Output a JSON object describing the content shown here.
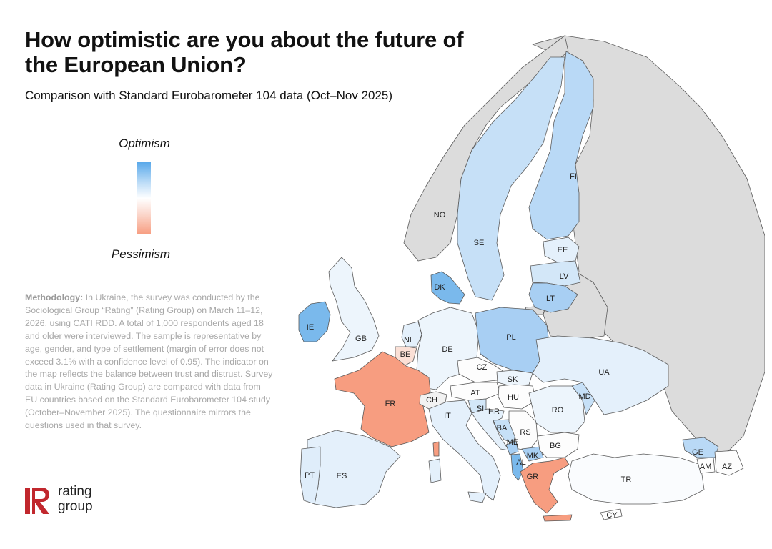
{
  "title": "How optimistic are you about the future of the European Union?",
  "subtitle": "Comparison with Standard Eurobarometer 104 data (Oct–Nov 2025)",
  "legend": {
    "top_label": "Optimism",
    "bottom_label": "Pessimism",
    "colors": {
      "optimism": "#5aa9ea",
      "neutral": "#ffffff",
      "pessimism": "#f79d80",
      "no_data": "#dcdcdc",
      "border": "#5a5a5a"
    }
  },
  "methodology": {
    "label": "Methodology:",
    "text": "In Ukraine, the survey was conducted by the Sociological Group “Rating” (Rating Group) on March 11–12, 2026, using CATI RDD. A total of 1,000 respondents aged 18 and older were interviewed. The sample is representative by age, gender, and type of settlement (margin of error does not exceed 3.1% with a confidence level of 0.95). The indicator on the map reflects the balance between trust and distrust. Survey data in Ukraine (Rating Group) are compared with data from EU countries based on the Standard Eurobarometer 104 study (October–November 2025). The questionnaire mirrors the questions used in that survey."
  },
  "logo": {
    "line1": "rating",
    "line2": "group",
    "brand_color": "#c1272d"
  },
  "map": {
    "countries": [
      {
        "code": "NO",
        "fill": "#dcdcdc"
      },
      {
        "code": "SE",
        "fill": "#c6e0f7"
      },
      {
        "code": "FI",
        "fill": "#b9d9f6"
      },
      {
        "code": "EE",
        "fill": "#e4f0fb"
      },
      {
        "code": "LV",
        "fill": "#d3e7f8"
      },
      {
        "code": "LT",
        "fill": "#a8cff3"
      },
      {
        "code": "DK",
        "fill": "#7ab9ec"
      },
      {
        "code": "IE",
        "fill": "#7ab9ec"
      },
      {
        "code": "GB",
        "fill": "#edf5fc"
      },
      {
        "code": "NL",
        "fill": "#e4f0fb"
      },
      {
        "code": "BE",
        "fill": "#fbe0d6"
      },
      {
        "code": "DE",
        "fill": "#edf5fc"
      },
      {
        "code": "PL",
        "fill": "#a8cff3"
      },
      {
        "code": "CZ",
        "fill": "#fdfdfd"
      },
      {
        "code": "SK",
        "fill": "#edf5fc"
      },
      {
        "code": "AT",
        "fill": "#fdfdfd"
      },
      {
        "code": "HU",
        "fill": "#fdfdfd"
      },
      {
        "code": "FR",
        "fill": "#f79d80"
      },
      {
        "code": "CH",
        "fill": "#f2f2f2"
      },
      {
        "code": "IT",
        "fill": "#e4f0fb"
      },
      {
        "code": "SI",
        "fill": "#d3e7f8"
      },
      {
        "code": "HR",
        "fill": "#e4f0fb"
      },
      {
        "code": "BA",
        "fill": "#c6e0f7"
      },
      {
        "code": "RS",
        "fill": "#fdfdfd"
      },
      {
        "code": "ME",
        "fill": "#a8cff3"
      },
      {
        "code": "MK",
        "fill": "#a8cff3"
      },
      {
        "code": "AL",
        "fill": "#7ab9ec"
      },
      {
        "code": "GR",
        "fill": "#f79d80"
      },
      {
        "code": "BG",
        "fill": "#fdfdfd"
      },
      {
        "code": "RO",
        "fill": "#edf5fc"
      },
      {
        "code": "MD",
        "fill": "#c6e0f7"
      },
      {
        "code": "UA",
        "fill": "#e4f0fb"
      },
      {
        "code": "TR",
        "fill": "#fafcfe"
      },
      {
        "code": "GE",
        "fill": "#b9d9f6"
      },
      {
        "code": "AM",
        "fill": "#fdfdfd"
      },
      {
        "code": "AZ",
        "fill": "#fdfdfd"
      },
      {
        "code": "CY",
        "fill": "#fdfdfd"
      },
      {
        "code": "ES",
        "fill": "#e4f0fb"
      },
      {
        "code": "PT",
        "fill": "#dfedfa"
      }
    ]
  }
}
